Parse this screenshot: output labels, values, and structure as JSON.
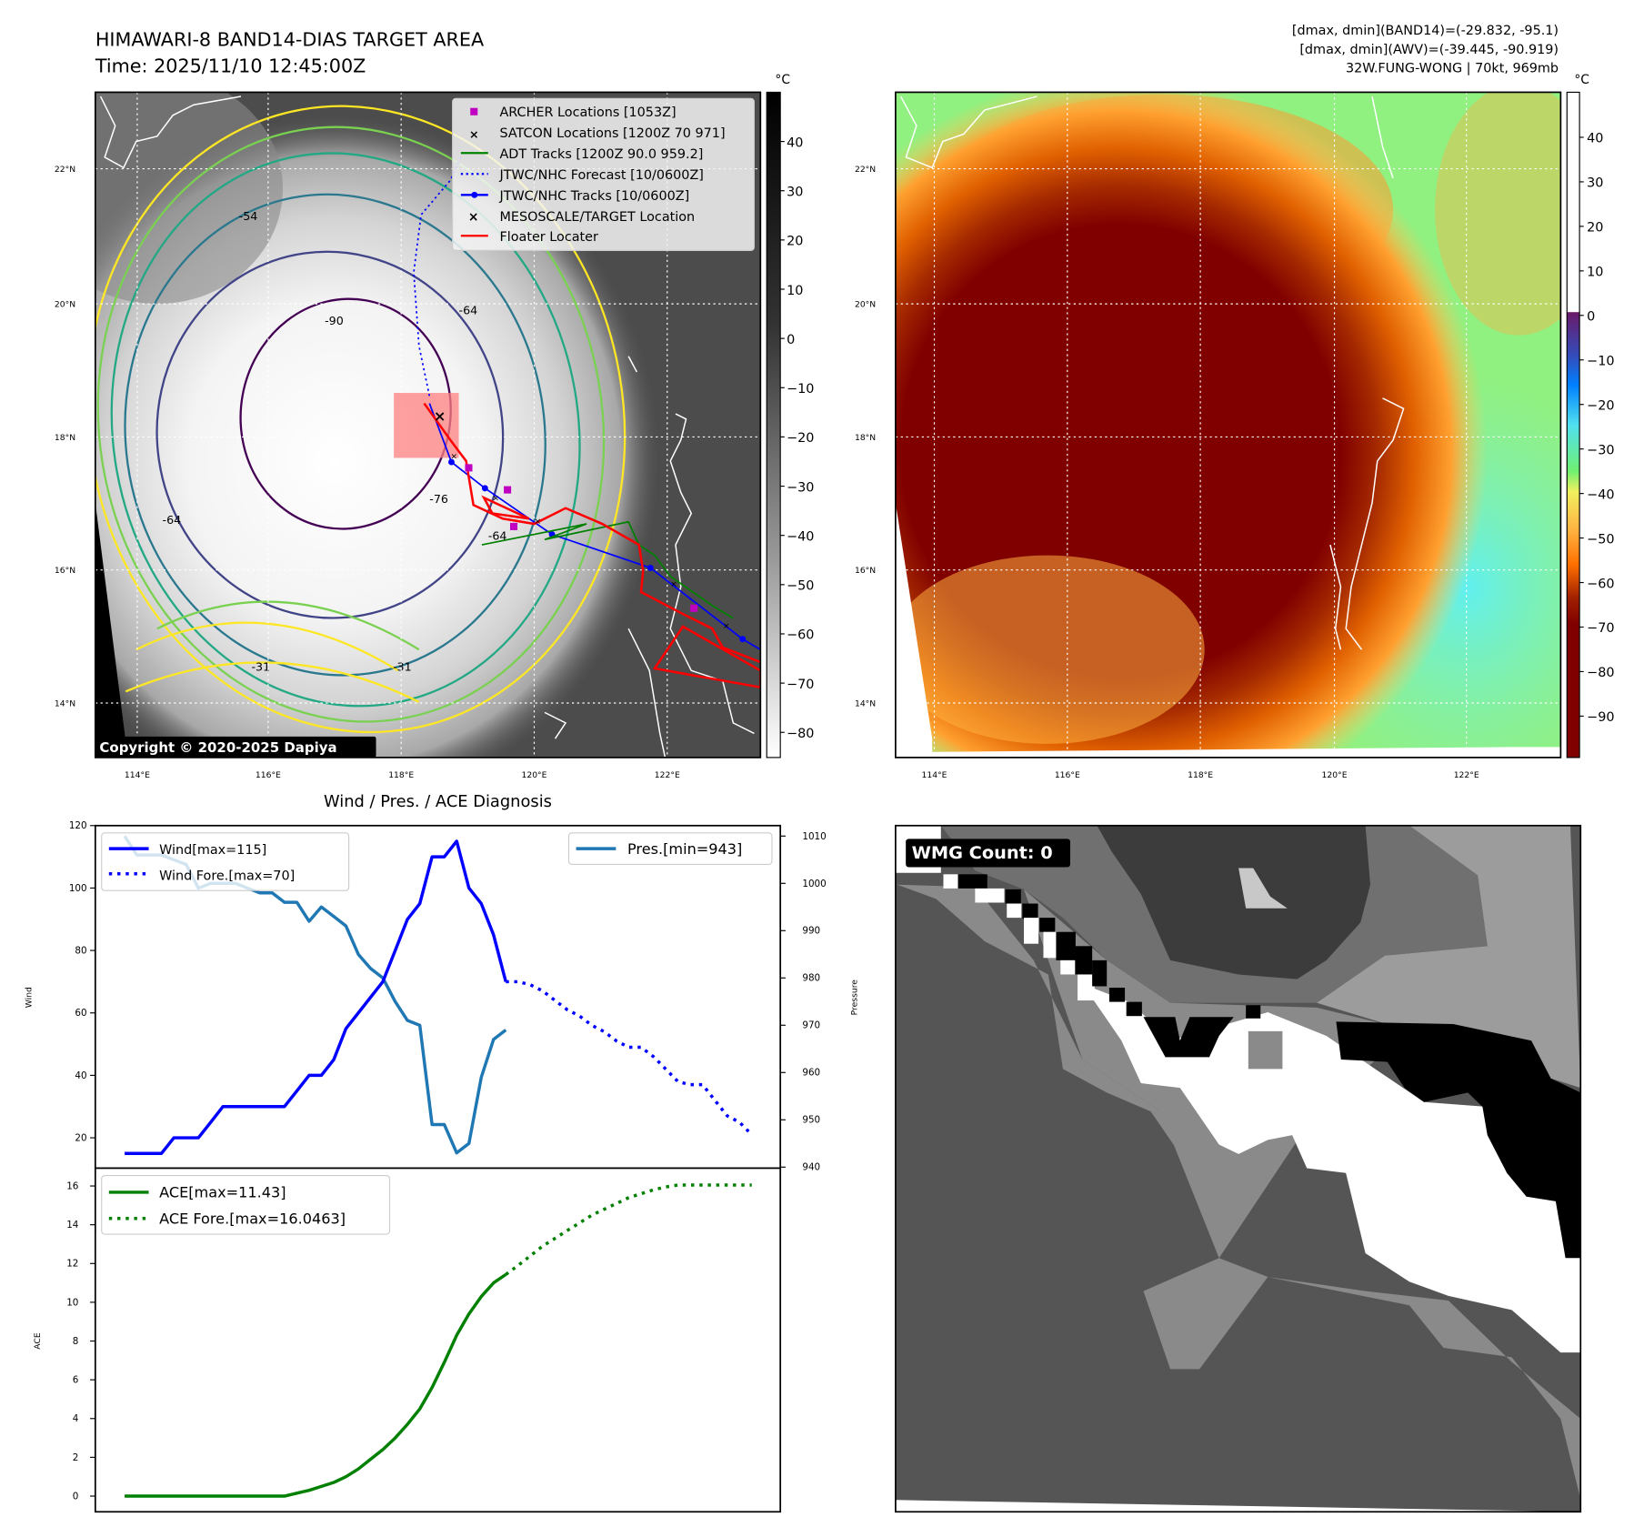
{
  "left_map": {
    "title": "HIMAWARI-8 BAND14-DIAS TARGET AREA",
    "time": "Time: 2025/11/10 12:45:00Z",
    "unit": "°C",
    "copyright": "Copyright © 2020-2025 Dapiya",
    "colorbar_ticks": [
      "40",
      "30",
      "20",
      "10",
      "0",
      "−10",
      "−20",
      "−30",
      "−40",
      "−50",
      "−60",
      "−70",
      "−80"
    ],
    "lat_ticks": [
      "22°N",
      "20°N",
      "18°N",
      "16°N",
      "14°N"
    ],
    "lon_ticks": [
      "114°E",
      "116°E",
      "118°E",
      "120°E",
      "122°E"
    ],
    "contour_labels": [
      "-54",
      "-64",
      "-76",
      "-90",
      "-64",
      "-31",
      "-31",
      "-64"
    ],
    "legend": [
      {
        "label": "ARCHER Locations [1053Z]",
        "color": "#c000c0"
      },
      {
        "label": "SATCON Locations [1200Z 70 971]",
        "color": "#00c0c0"
      },
      {
        "label": "ADT Tracks [1200Z 90.0 959.2]",
        "color": "#008000"
      },
      {
        "label": "JTWC/NHC Forecast [10/0600Z]",
        "color": "#0000ff"
      },
      {
        "label": "JTWC/NHC Tracks [10/0600Z]",
        "color": "#0000ff"
      },
      {
        "label": "MESOSCALE/TARGET Location",
        "color": "#ff0000"
      },
      {
        "label": "Floater Locater",
        "color": "#ff0000"
      }
    ]
  },
  "right_map": {
    "info_line1": "[dmax, dmin](BAND14)=(-29.832, -95.1)",
    "info_line2": "[dmax, dmin](AWV)=(-39.445, -90.919)",
    "info_line3": "32W.FUNG-WONG | 70kt, 969mb",
    "unit": "°C",
    "colorbar_ticks": [
      "40",
      "30",
      "20",
      "10",
      "0",
      "−10",
      "−20",
      "−30",
      "−40",
      "−50",
      "−60",
      "−70",
      "−80",
      "−90"
    ],
    "lat_ticks": [
      "22°N",
      "20°N",
      "18°N",
      "16°N",
      "14°N"
    ],
    "lon_ticks": [
      "114°E",
      "116°E",
      "118°E",
      "120°E",
      "122°E"
    ]
  },
  "wmg_panel": {
    "label": "WMG Count: 0"
  },
  "chart_data": [
    {
      "type": "line",
      "title": "Wind / Pres. / ACE Diagnosis",
      "ylabel": "Wind",
      "y2label": "Pressure",
      "ylim": [
        10,
        120
      ],
      "y2lim": [
        940,
        1012
      ],
      "yticks": [
        "20",
        "40",
        "60",
        "80",
        "100",
        "120"
      ],
      "y2ticks": [
        "940",
        "950",
        "960",
        "970",
        "980",
        "990",
        "1000",
        "1010"
      ],
      "legend_left": [
        "Wind[max=115]",
        "Wind Fore.[max=70]"
      ],
      "legend_right": [
        "Pres.[min=943]"
      ],
      "series": [
        {
          "name": "Wind[max=115]",
          "color": "#0000ff",
          "style": "solid",
          "axis": "left",
          "x": [
            0,
            1,
            2,
            3,
            4,
            5,
            6,
            7,
            8,
            9,
            10,
            11,
            12,
            13,
            14,
            15,
            16,
            17,
            18,
            19,
            20,
            21,
            22,
            23,
            24,
            25,
            26,
            27,
            28,
            29,
            30,
            31
          ],
          "values": [
            15,
            15,
            15,
            15,
            20,
            20,
            20,
            25,
            30,
            30,
            30,
            30,
            30,
            30,
            35,
            40,
            40,
            45,
            55,
            60,
            65,
            70,
            80,
            90,
            95,
            110,
            110,
            115,
            100,
            95,
            85,
            70
          ]
        },
        {
          "name": "Wind Fore.[max=70]",
          "color": "#0000ff",
          "style": "dotted",
          "axis": "left",
          "x": [
            31,
            32,
            33,
            34,
            35,
            36,
            37,
            38,
            39,
            40,
            41,
            42,
            43,
            44,
            45,
            46,
            47,
            48,
            49,
            50,
            51
          ],
          "values": [
            70,
            70,
            69,
            67,
            64,
            61,
            59,
            56,
            54,
            51,
            49,
            49,
            46,
            42,
            38,
            37,
            37,
            32,
            27,
            25,
            21
          ]
        },
        {
          "name": "Pres.[min=943]",
          "color": "#1f77b4",
          "style": "solid",
          "axis": "right",
          "x": [
            0,
            1,
            2,
            3,
            4,
            5,
            6,
            7,
            8,
            9,
            10,
            11,
            12,
            13,
            14,
            15,
            16,
            17,
            18,
            19,
            20,
            21,
            22,
            23,
            24,
            25,
            26,
            27,
            28,
            29,
            30,
            31
          ],
          "values": [
            1010,
            1006,
            1006,
            1006,
            1005,
            1004,
            999,
            1000,
            1000,
            1000,
            999,
            998,
            998,
            996,
            996,
            992,
            995,
            993,
            991,
            985,
            982,
            980,
            975,
            971,
            970,
            949,
            949,
            943,
            945,
            959,
            967,
            969
          ]
        }
      ]
    },
    {
      "type": "line",
      "ylabel": "ACE",
      "ylim": [
        -0.8,
        16.8
      ],
      "yticks": [
        "0",
        "2",
        "4",
        "6",
        "8",
        "10",
        "12",
        "14",
        "16"
      ],
      "legend": [
        "ACE[max=11.43]",
        "ACE Fore.[max=16.0463]"
      ],
      "series": [
        {
          "name": "ACE[max=11.43]",
          "color": "#008000",
          "style": "solid",
          "x": [
            0,
            1,
            2,
            3,
            4,
            5,
            6,
            7,
            8,
            9,
            10,
            11,
            12,
            13,
            14,
            15,
            16,
            17,
            18,
            19,
            20,
            21,
            22,
            23,
            24,
            25,
            26,
            27,
            28,
            29,
            30,
            31
          ],
          "values": [
            0,
            0,
            0,
            0,
            0,
            0,
            0,
            0,
            0,
            0,
            0,
            0,
            0,
            0,
            0.15,
            0.3,
            0.5,
            0.7,
            1.0,
            1.4,
            1.9,
            2.4,
            3.0,
            3.7,
            4.5,
            5.6,
            6.9,
            8.3,
            9.4,
            10.3,
            11.0,
            11.43
          ]
        },
        {
          "name": "ACE Fore.[max=16.0463]",
          "color": "#008000",
          "style": "dotted",
          "x": [
            31,
            32,
            33,
            34,
            35,
            36,
            37,
            38,
            39,
            40,
            41,
            42,
            43,
            44,
            45,
            46,
            47,
            48,
            49,
            50,
            51
          ],
          "values": [
            11.43,
            11.9,
            12.4,
            12.9,
            13.3,
            13.7,
            14.1,
            14.5,
            14.8,
            15.1,
            15.4,
            15.6,
            15.8,
            15.95,
            16.05,
            16.05,
            16.05,
            16.05,
            16.05,
            16.05,
            16.05
          ]
        }
      ]
    }
  ]
}
